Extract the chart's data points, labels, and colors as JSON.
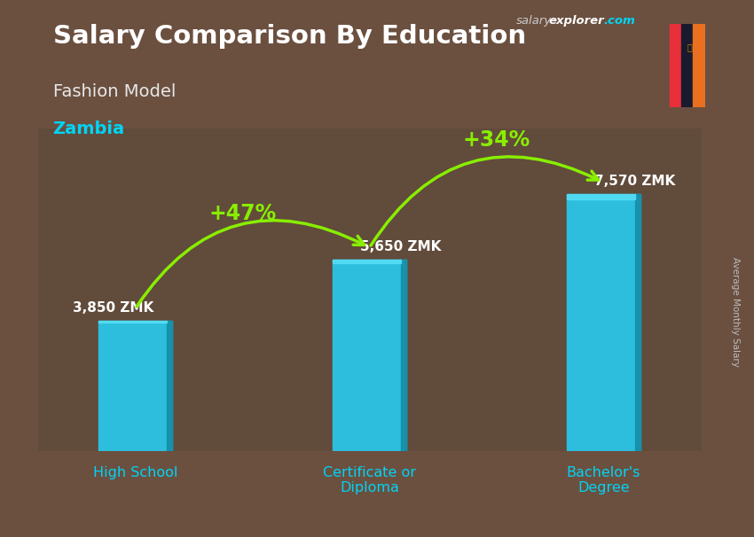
{
  "title": "Salary Comparison By Education",
  "subtitle": "Fashion Model",
  "location": "Zambia",
  "categories": [
    "High School",
    "Certificate or\nDiploma",
    "Bachelor's\nDegree"
  ],
  "values": [
    3850,
    5650,
    7570
  ],
  "value_labels": [
    "3,850 ZMK",
    "5,650 ZMK",
    "7,570 ZMK"
  ],
  "pct_labels": [
    "+47%",
    "+34%"
  ],
  "bar_color": "#29c5e6",
  "bar_edge_color": "#1aa0c0",
  "bg_color": "#6b5040",
  "title_color": "#ffffff",
  "subtitle_color": "#e8e8e8",
  "location_color": "#00d4f5",
  "label_color": "#ffffff",
  "arrow_color": "#88ee00",
  "pct_color": "#88ee00",
  "xtick_color": "#00d4f5",
  "ylim": [
    0,
    9500
  ],
  "bar_width": 0.38,
  "x_positions": [
    0.5,
    1.7,
    2.9
  ],
  "xlim": [
    0.0,
    3.4
  ],
  "figsize": [
    8.5,
    6.06
  ],
  "dpi": 100,
  "flag_green": "#4aac1a",
  "flag_red": "#e8303a",
  "flag_black": "#1a1a2e",
  "flag_orange": "#e87020",
  "site_text_salary": "salary",
  "site_text_explorer": "explorer",
  "site_text_com": ".com",
  "ylabel_text": "Average Monthly Salary"
}
